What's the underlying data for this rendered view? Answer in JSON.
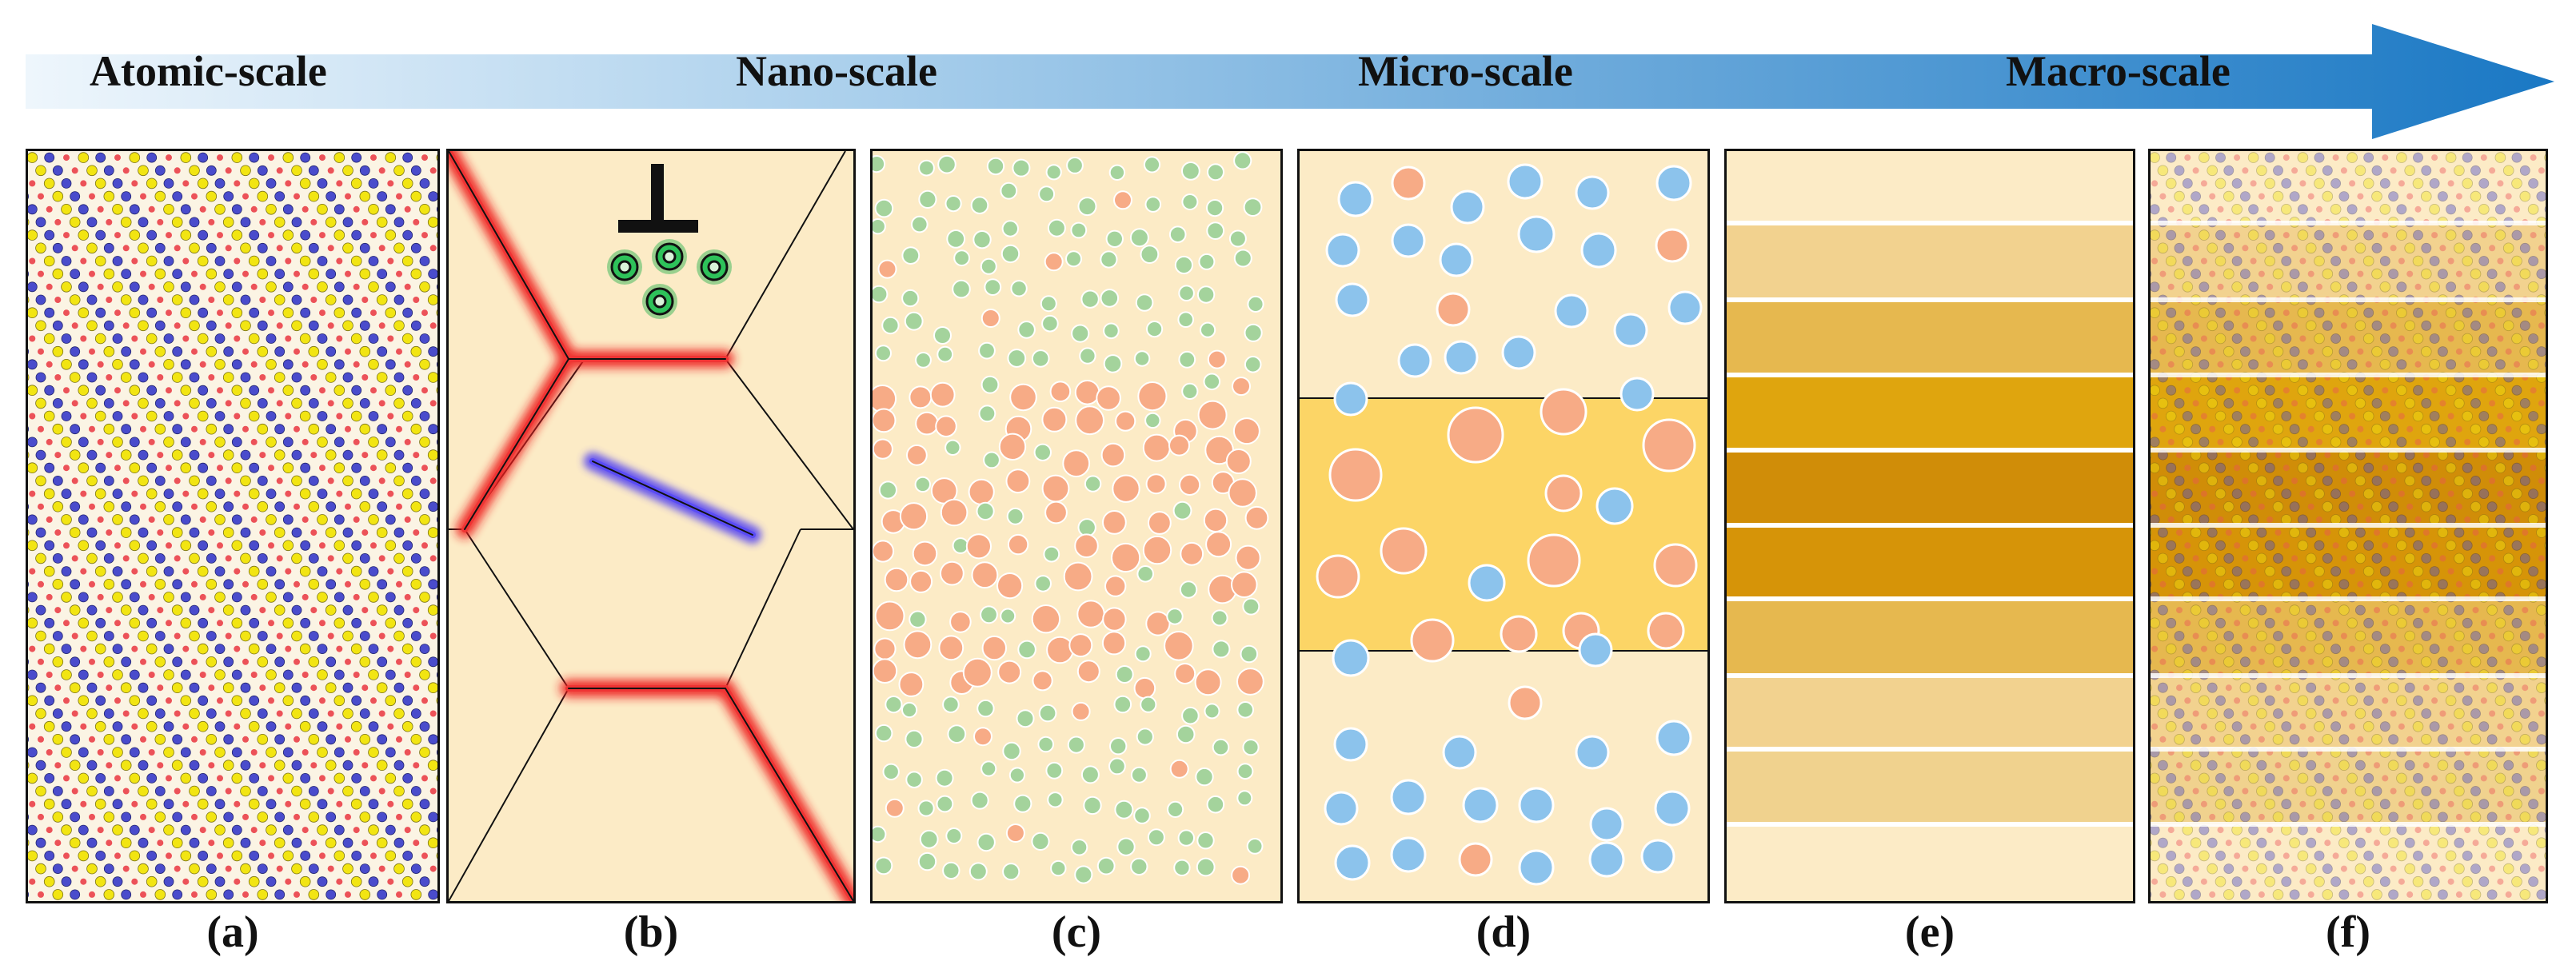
{
  "scale_bar": {
    "labels": [
      "Atomic-scale",
      "Nano-scale",
      "Micro-scale",
      "Macro-scale"
    ]
  },
  "panels": [
    {
      "caption": "(a)"
    },
    {
      "caption": "(b)"
    },
    {
      "caption": "(c)"
    },
    {
      "caption": "(d)"
    },
    {
      "caption": "(e)"
    },
    {
      "caption": "(f)"
    }
  ],
  "colors": {
    "arrow_start": "#eef6fc",
    "arrow_end": "#1a78c4",
    "atom_yellow": "#f2e512",
    "atom_blue": "#4a4ccc",
    "atom_red": "#ec5258",
    "matrix_beige": "#fcebc6",
    "boundary_red": "#ee1c1c",
    "dislocation_blue": "#3a2cf0",
    "green_particle": "#a4d39c",
    "orange_particle": "#f7ab86",
    "blue_particle": "#8cc3ec",
    "gold_layer": "#fcd566",
    "layer_shades": [
      "#fcebc6",
      "#f2d28f",
      "#e6b84f",
      "#dfa50e",
      "#d08d08",
      "#d69408"
    ]
  }
}
